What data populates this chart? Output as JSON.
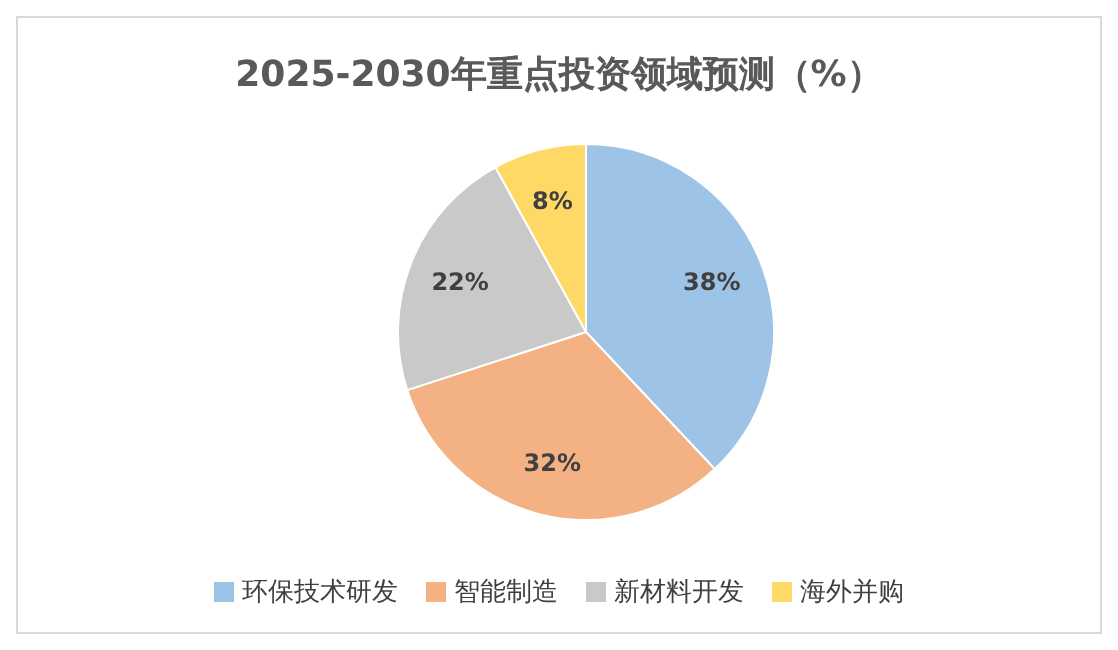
{
  "chart_data": {
    "type": "pie",
    "title": "2025-2030年重点投资领域预测（%）",
    "categories": [
      "环保技术研发",
      "智能制造",
      "新材料开发",
      "海外并购"
    ],
    "values": [
      38,
      32,
      22,
      8
    ],
    "value_labels": [
      "38%",
      "32%",
      "22%",
      "8%"
    ],
    "colors": [
      "#9dc3e6",
      "#f4b183",
      "#c9c9c9",
      "#ffd966"
    ],
    "legend": "bottom"
  }
}
